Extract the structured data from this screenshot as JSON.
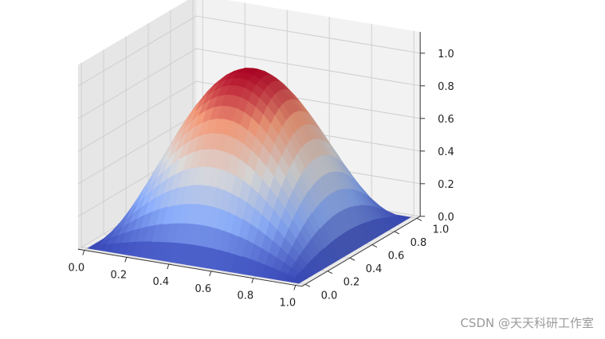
{
  "chart_data": {
    "type": "surface3d",
    "surface": "sin(pi*x)*sin(pi*y)",
    "colormap": "coolwarm",
    "x": {
      "ticks": [
        0.0,
        0.2,
        0.4,
        0.6,
        0.8,
        1.0
      ],
      "tick_labels": [
        "0.0",
        "0.2",
        "0.4",
        "0.6",
        "0.8",
        "1.0"
      ],
      "lim": [
        0,
        1
      ]
    },
    "y": {
      "ticks": [
        0.0,
        0.2,
        0.4,
        0.6,
        0.8,
        1.0
      ],
      "tick_labels": [
        "0.0",
        "0.2",
        "0.4",
        "0.6",
        "0.8",
        "1.0"
      ],
      "lim": [
        0,
        1
      ]
    },
    "z": {
      "ticks": [
        0.0,
        0.2,
        0.4,
        0.6,
        0.8,
        1.0
      ],
      "tick_labels": [
        "0.0",
        "0.2",
        "0.4",
        "0.6",
        "0.8",
        "1.0"
      ],
      "lim": [
        0,
        1
      ]
    },
    "grid": true,
    "title": "",
    "xlabel": "",
    "ylabel": "",
    "zlabel": ""
  },
  "watermark": "CSDN @天天科研工作室"
}
